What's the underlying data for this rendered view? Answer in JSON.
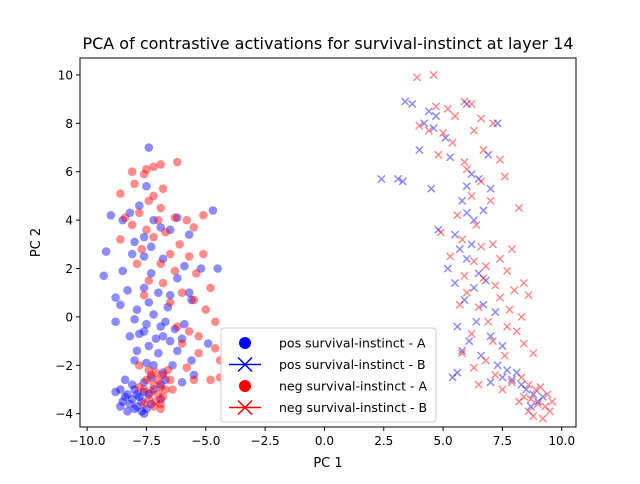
{
  "chart_data": {
    "type": "scatter",
    "title": "PCA of contrastive activations for survival-instinct at layer 14",
    "xlabel": "PC 1",
    "ylabel": "PC 2",
    "xlim": [
      -10.3,
      10.6
    ],
    "ylim": [
      -4.55,
      10.7
    ],
    "xticks": [
      -10.0,
      -7.5,
      -5.0,
      -2.5,
      0.0,
      2.5,
      5.0,
      7.5,
      10.0
    ],
    "xtick_labels": [
      "−10.0",
      "−7.5",
      "−5.0",
      "−2.5",
      "0.0",
      "2.5",
      "5.0",
      "7.5",
      "10.0"
    ],
    "yticks": [
      -4,
      -2,
      0,
      2,
      4,
      6,
      8,
      10
    ],
    "ytick_labels": [
      "−4",
      "−2",
      "0",
      "2",
      "4",
      "6",
      "8",
      "10"
    ],
    "grid": false,
    "legend_position": "bottom-center",
    "series": [
      {
        "name": "pos survival-instinct - A",
        "marker": "circle",
        "color": "#0000ff",
        "points": [
          [
            -7.4,
            7.0
          ],
          [
            -7.5,
            5.4
          ],
          [
            -7.8,
            4.6
          ],
          [
            -9.0,
            4.2
          ],
          [
            -8.5,
            4.0
          ],
          [
            -8.2,
            4.3
          ],
          [
            -7.2,
            4.0
          ],
          [
            -6.2,
            4.1
          ],
          [
            -6.9,
            3.7
          ],
          [
            -6.5,
            3.6
          ],
          [
            -4.7,
            4.4
          ],
          [
            -5.7,
            3.4
          ],
          [
            -7.6,
            3.3
          ],
          [
            -8.0,
            3.1
          ],
          [
            -7.3,
            2.9
          ],
          [
            -9.2,
            2.7
          ],
          [
            -8.1,
            2.6
          ],
          [
            -7.6,
            2.5
          ],
          [
            -6.8,
            2.4
          ],
          [
            -5.9,
            2.1
          ],
          [
            -5.2,
            2.0
          ],
          [
            -4.5,
            2.0
          ],
          [
            -8.5,
            1.9
          ],
          [
            -9.3,
            1.7
          ],
          [
            -7.3,
            1.8
          ],
          [
            -6.2,
            1.6
          ],
          [
            -7.6,
            1.2
          ],
          [
            -8.3,
            1.1
          ],
          [
            -8.8,
            0.8
          ],
          [
            -7.0,
            1.0
          ],
          [
            -6.5,
            0.9
          ],
          [
            -5.7,
            1.0
          ],
          [
            -8.6,
            0.5
          ],
          [
            -7.9,
            0.3
          ],
          [
            -7.4,
            0.6
          ],
          [
            -6.6,
            0.4
          ],
          [
            -5.6,
            0.7
          ],
          [
            -8.8,
            -0.2
          ],
          [
            -8.0,
            -0.1
          ],
          [
            -7.5,
            -0.3
          ],
          [
            -7.2,
            0.1
          ],
          [
            -6.9,
            -0.4
          ],
          [
            -6.7,
            -0.2
          ],
          [
            -6.3,
            -0.5
          ],
          [
            -5.9,
            -0.3
          ],
          [
            -8.2,
            -0.8
          ],
          [
            -7.8,
            -0.7
          ],
          [
            -7.6,
            -0.6
          ],
          [
            -7.1,
            -0.9
          ],
          [
            -6.8,
            -0.8
          ],
          [
            -6.5,
            -1.0
          ],
          [
            -6.0,
            -0.9
          ],
          [
            -7.9,
            -1.4
          ],
          [
            -7.4,
            -1.2
          ],
          [
            -7.0,
            -1.5
          ],
          [
            -6.2,
            -1.4
          ],
          [
            -4.9,
            -1.1
          ],
          [
            -8.0,
            -1.8
          ],
          [
            -7.5,
            -1.9
          ],
          [
            -7.2,
            -2.0
          ],
          [
            -6.8,
            -2.3
          ],
          [
            -6.4,
            -2.0
          ],
          [
            -5.6,
            -1.8
          ],
          [
            -8.4,
            -2.6
          ],
          [
            -8.1,
            -2.8
          ],
          [
            -7.6,
            -2.7
          ],
          [
            -7.3,
            -2.5
          ],
          [
            -6.9,
            -2.8
          ],
          [
            -6.7,
            -2.6
          ],
          [
            -6.0,
            -2.7
          ],
          [
            -5.5,
            -2.4
          ],
          [
            -8.6,
            -3.0
          ],
          [
            -8.3,
            -3.2
          ],
          [
            -8.0,
            -3.0
          ],
          [
            -7.8,
            -3.3
          ],
          [
            -7.6,
            -3.1
          ],
          [
            -7.4,
            -3.2
          ],
          [
            -7.2,
            -3.0
          ],
          [
            -6.9,
            -3.4
          ],
          [
            -8.5,
            -3.5
          ],
          [
            -8.2,
            -3.6
          ],
          [
            -7.9,
            -3.7
          ],
          [
            -7.7,
            -3.5
          ],
          [
            -7.5,
            -3.8
          ],
          [
            -7.3,
            -3.6
          ],
          [
            -8.3,
            -3.9
          ],
          [
            -8.0,
            -3.8
          ],
          [
            -7.6,
            -4.0
          ],
          [
            -8.1,
            -3.4
          ],
          [
            -8.4,
            -3.3
          ],
          [
            -7.7,
            -3.9
          ],
          [
            -7.9,
            -3.2
          ],
          [
            -8.6,
            -3.7
          ],
          [
            -8.8,
            -3.1
          ]
        ]
      },
      {
        "name": "pos survival-instinct - B",
        "marker": "x",
        "color": "#0000ff",
        "points": [
          [
            3.7,
            8.8
          ],
          [
            3.4,
            8.9
          ],
          [
            4.4,
            8.5
          ],
          [
            4.7,
            8.3
          ],
          [
            6.0,
            8.8
          ],
          [
            7.3,
            8.0
          ],
          [
            4.2,
            8.0
          ],
          [
            4.6,
            7.8
          ],
          [
            5.1,
            7.4
          ],
          [
            4.0,
            6.9
          ],
          [
            5.3,
            6.6
          ],
          [
            6.9,
            6.7
          ],
          [
            6.2,
            5.9
          ],
          [
            6.5,
            5.7
          ],
          [
            2.4,
            5.7
          ],
          [
            3.1,
            5.7
          ],
          [
            3.3,
            5.6
          ],
          [
            4.5,
            5.3
          ],
          [
            6.0,
            5.4
          ],
          [
            7.0,
            5.3
          ],
          [
            5.8,
            4.8
          ],
          [
            6.7,
            4.4
          ],
          [
            6.0,
            4.3
          ],
          [
            6.3,
            4.0
          ],
          [
            4.8,
            3.6
          ],
          [
            5.5,
            3.4
          ],
          [
            6.2,
            3.0
          ],
          [
            5.7,
            2.8
          ],
          [
            6.0,
            2.4
          ],
          [
            5.2,
            2.0
          ],
          [
            6.5,
            1.8
          ],
          [
            6.8,
            1.5
          ],
          [
            5.5,
            1.4
          ],
          [
            6.3,
            1.2
          ],
          [
            5.9,
            0.7
          ],
          [
            6.7,
            0.5
          ],
          [
            7.2,
            0.2
          ],
          [
            6.4,
            -0.2
          ],
          [
            5.6,
            -0.4
          ],
          [
            7.0,
            -0.8
          ],
          [
            6.1,
            -1.0
          ],
          [
            7.5,
            -1.2
          ],
          [
            5.8,
            -1.4
          ],
          [
            6.6,
            -1.6
          ],
          [
            7.3,
            -2.0
          ],
          [
            7.7,
            -2.2
          ],
          [
            8.1,
            -2.3
          ],
          [
            7.5,
            -2.5
          ],
          [
            7.9,
            -2.6
          ],
          [
            8.3,
            -2.8
          ],
          [
            5.6,
            -2.3
          ],
          [
            5.4,
            -2.5
          ],
          [
            7.0,
            -2.7
          ],
          [
            8.5,
            -3.0
          ],
          [
            8.8,
            -3.2
          ],
          [
            9.0,
            -3.5
          ],
          [
            8.7,
            -3.7
          ],
          [
            9.2,
            -3.3
          ]
        ]
      },
      {
        "name": "neg survival-instinct - A",
        "marker": "circle",
        "color": "#ff0000",
        "points": [
          [
            -8.1,
            6.0
          ],
          [
            -7.6,
            5.9
          ],
          [
            -7.2,
            6.2
          ],
          [
            -6.9,
            6.3
          ],
          [
            -6.2,
            6.4
          ],
          [
            -7.5,
            6.1
          ],
          [
            -8.0,
            5.5
          ],
          [
            -7.2,
            5.0
          ],
          [
            -6.8,
            5.3
          ],
          [
            -8.6,
            5.1
          ],
          [
            -7.4,
            4.8
          ],
          [
            -6.9,
            4.5
          ],
          [
            -7.8,
            4.3
          ],
          [
            -8.4,
            4.1
          ],
          [
            -7.0,
            4.0
          ],
          [
            -6.3,
            4.1
          ],
          [
            -5.1,
            4.2
          ],
          [
            -5.8,
            4.0
          ],
          [
            -8.1,
            3.8
          ],
          [
            -7.5,
            3.6
          ],
          [
            -6.7,
            3.5
          ],
          [
            -5.5,
            3.7
          ],
          [
            -7.2,
            3.3
          ],
          [
            -8.6,
            3.2
          ],
          [
            -6.1,
            3.0
          ],
          [
            -7.7,
            2.8
          ],
          [
            -6.5,
            2.6
          ],
          [
            -5.7,
            2.5
          ],
          [
            -5.1,
            2.6
          ],
          [
            -6.9,
            2.2
          ],
          [
            -7.9,
            2.2
          ],
          [
            -6.3,
            1.9
          ],
          [
            -5.4,
            1.8
          ],
          [
            -7.4,
            1.5
          ],
          [
            -6.8,
            1.4
          ],
          [
            -4.8,
            1.2
          ],
          [
            -7.6,
            0.9
          ],
          [
            -6.0,
            1.0
          ],
          [
            -5.5,
            0.7
          ],
          [
            -6.5,
            0.6
          ],
          [
            -5.0,
            0.3
          ],
          [
            -4.6,
            -0.2
          ],
          [
            -6.2,
            -0.4
          ],
          [
            -5.7,
            -0.6
          ],
          [
            -5.3,
            -0.8
          ],
          [
            -6.0,
            -1.1
          ],
          [
            -4.6,
            -1.3
          ],
          [
            -5.3,
            -1.5
          ],
          [
            -4.4,
            -1.8
          ],
          [
            -7.8,
            -2.0
          ],
          [
            -7.4,
            -2.2
          ],
          [
            -7.1,
            -2.3
          ],
          [
            -6.8,
            -2.4
          ],
          [
            -6.5,
            -2.6
          ],
          [
            -7.5,
            -2.6
          ],
          [
            -7.2,
            -2.8
          ],
          [
            -6.9,
            -2.9
          ],
          [
            -7.6,
            -3.0
          ],
          [
            -7.3,
            -3.1
          ],
          [
            -7.0,
            -3.2
          ],
          [
            -6.7,
            -3.0
          ],
          [
            -7.4,
            -3.4
          ],
          [
            -7.1,
            -3.5
          ],
          [
            -6.8,
            -3.3
          ],
          [
            -7.6,
            -3.6
          ],
          [
            -7.2,
            -3.7
          ],
          [
            -6.9,
            -3.8
          ],
          [
            -6.4,
            -3.0
          ],
          [
            -6.6,
            -2.2
          ],
          [
            -5.5,
            -2.6
          ],
          [
            -4.8,
            -2.6
          ],
          [
            -4.4,
            -2.5
          ],
          [
            -5.8,
            -2.1
          ],
          [
            -7.0,
            -2.6
          ],
          [
            -7.3,
            -2.4
          ],
          [
            -6.9,
            -3.6
          ],
          [
            -7.8,
            -2.9
          ]
        ]
      },
      {
        "name": "neg survival-instinct - B",
        "marker": "x",
        "color": "#ff0000",
        "points": [
          [
            3.9,
            9.9
          ],
          [
            4.6,
            10.0
          ],
          [
            4.7,
            8.7
          ],
          [
            5.2,
            8.6
          ],
          [
            5.9,
            8.9
          ],
          [
            6.2,
            8.8
          ],
          [
            5.5,
            8.3
          ],
          [
            6.6,
            8.2
          ],
          [
            4.0,
            7.9
          ],
          [
            4.4,
            7.7
          ],
          [
            5.0,
            7.6
          ],
          [
            6.3,
            7.7
          ],
          [
            7.1,
            8.0
          ],
          [
            5.4,
            7.2
          ],
          [
            6.7,
            6.9
          ],
          [
            4.8,
            6.7
          ],
          [
            5.9,
            6.4
          ],
          [
            7.4,
            6.5
          ],
          [
            6.0,
            6.1
          ],
          [
            7.6,
            5.8
          ],
          [
            6.6,
            5.6
          ],
          [
            6.2,
            5.0
          ],
          [
            7.0,
            4.8
          ],
          [
            8.2,
            4.5
          ],
          [
            5.6,
            4.2
          ],
          [
            6.4,
            3.8
          ],
          [
            4.9,
            3.5
          ],
          [
            5.8,
            3.2
          ],
          [
            7.1,
            3.0
          ],
          [
            6.6,
            2.9
          ],
          [
            7.9,
            2.8
          ],
          [
            5.3,
            2.5
          ],
          [
            6.3,
            2.3
          ],
          [
            7.4,
            2.4
          ],
          [
            6.8,
            2.1
          ],
          [
            7.7,
            1.9
          ],
          [
            8.4,
            1.4
          ],
          [
            5.9,
            1.7
          ],
          [
            6.7,
            1.6
          ],
          [
            7.2,
            1.3
          ],
          [
            8.0,
            1.1
          ],
          [
            6.0,
            1.0
          ],
          [
            7.4,
            0.8
          ],
          [
            8.6,
            0.9
          ],
          [
            5.7,
            0.5
          ],
          [
            6.5,
            0.4
          ],
          [
            7.8,
            0.3
          ],
          [
            8.3,
            0.0
          ],
          [
            6.9,
            -0.2
          ],
          [
            7.7,
            -0.4
          ],
          [
            8.1,
            -0.6
          ],
          [
            6.2,
            -0.7
          ],
          [
            7.1,
            -1.0
          ],
          [
            8.4,
            -1.1
          ],
          [
            5.8,
            -1.5
          ],
          [
            6.8,
            -1.8
          ],
          [
            7.6,
            -1.6
          ],
          [
            8.8,
            -1.5
          ],
          [
            6.3,
            -2.1
          ],
          [
            7.2,
            -2.4
          ],
          [
            7.9,
            -2.7
          ],
          [
            8.3,
            -2.5
          ],
          [
            8.6,
            -2.8
          ],
          [
            8.9,
            -3.0
          ],
          [
            9.1,
            -2.9
          ],
          [
            9.4,
            -3.2
          ],
          [
            8.4,
            -3.3
          ],
          [
            8.7,
            -3.4
          ],
          [
            9.0,
            -3.6
          ],
          [
            9.3,
            -3.7
          ],
          [
            8.6,
            -3.9
          ],
          [
            9.6,
            -3.5
          ],
          [
            8.2,
            -3.5
          ],
          [
            9.5,
            -3.9
          ],
          [
            8.8,
            -4.1
          ],
          [
            9.2,
            -4.2
          ],
          [
            6.5,
            -2.8
          ],
          [
            7.5,
            -3.0
          ]
        ]
      }
    ]
  }
}
